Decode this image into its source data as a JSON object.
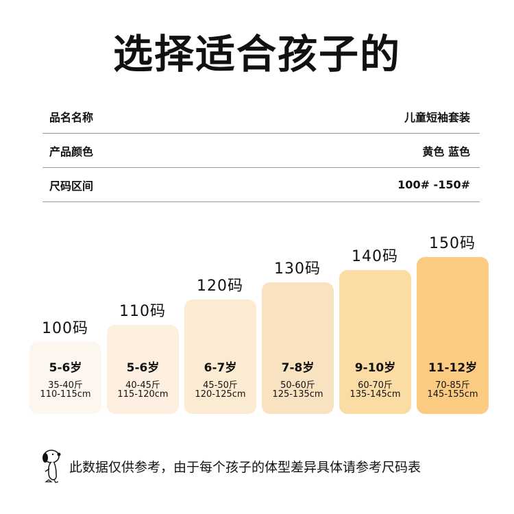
{
  "title": "选择适合孩子的",
  "info": [
    {
      "label": "品名名称",
      "value": "儿童短袖套装"
    },
    {
      "label": "产品颜色",
      "value": "黄色 蓝色"
    },
    {
      "label": "尺码区间",
      "value": "100# -150#"
    }
  ],
  "sizes": [
    {
      "size": "100码",
      "age": "5-6岁",
      "weight": "35-40斤",
      "height": "110-115cm",
      "color": "#fdf6ee"
    },
    {
      "size": "110码",
      "age": "5-6岁",
      "weight": "40-45斤",
      "height": "115-120cm",
      "color": "#fdf0e0"
    },
    {
      "size": "120码",
      "age": "6-7岁",
      "weight": "45-50斤",
      "height": "120-125cm",
      "color": "#fcebd3"
    },
    {
      "size": "130码",
      "age": "7-8岁",
      "weight": "50-60斤",
      "height": "125-135cm",
      "color": "#f9e2c0"
    },
    {
      "size": "140码",
      "age": "9-10岁",
      "weight": "60-70斤",
      "height": "135-145cm",
      "color": "#fbdca5"
    },
    {
      "size": "150码",
      "age": "11-12岁",
      "weight": "70-85斤",
      "height": "145-155cm",
      "color": "#fbcb82"
    }
  ],
  "note": "此数据仅供参考，由于每个孩子的体型差异具体请参考尺码表"
}
